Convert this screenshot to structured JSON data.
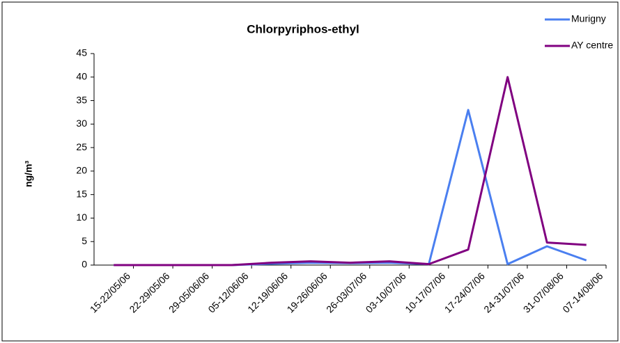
{
  "chart_data": {
    "type": "line",
    "title": "Chlorpyriphos-ethyl",
    "y_label": "ng/m³",
    "categories": [
      "15-22/05/06",
      "22-29/05/06",
      "29-05/06/06",
      "05-12/06/06",
      "12-19/06/06",
      "19-26/06/06",
      "26-03/07/06",
      "03-10/07/06",
      "10-17/07/06",
      "17-24/07/06",
      "24-31/07/06",
      "31-07/08/06",
      "07-14/08/06"
    ],
    "series": [
      {
        "name": "Murigny",
        "color": "#4a7ff0",
        "values": [
          0,
          0,
          0,
          0,
          0.3,
          0.5,
          0.4,
          0.5,
          0.2,
          33,
          0.2,
          4,
          1
        ]
      },
      {
        "name": "AY centre",
        "color": "#800080",
        "values": [
          0,
          0,
          0,
          0,
          0.5,
          0.8,
          0.5,
          0.8,
          0.2,
          3.3,
          40,
          4.8,
          4.3
        ]
      }
    ],
    "ylim": [
      0,
      45
    ],
    "yticks": [
      0,
      5,
      10,
      15,
      20,
      25,
      30,
      35,
      40,
      45
    ],
    "legend": "top-right"
  }
}
